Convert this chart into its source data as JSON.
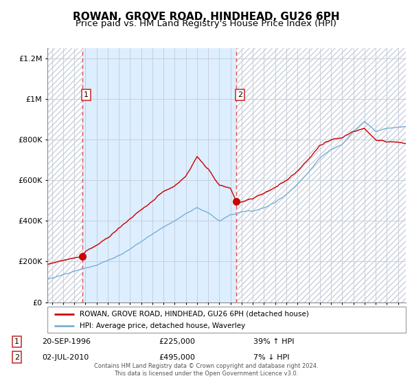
{
  "title": "ROWAN, GROVE ROAD, HINDHEAD, GU26 6PH",
  "subtitle": "Price paid vs. HM Land Registry's House Price Index (HPI)",
  "legend_line1": "ROWAN, GROVE ROAD, HINDHEAD, GU26 6PH (detached house)",
  "legend_line2": "HPI: Average price, detached house, Waverley",
  "transaction1_date": "20-SEP-1996",
  "transaction1_price": "£225,000",
  "transaction1_hpi": "39% ↑ HPI",
  "transaction2_date": "02-JUL-2010",
  "transaction2_price": "£495,000",
  "transaction2_hpi": "7% ↓ HPI",
  "footer": "Contains HM Land Registry data © Crown copyright and database right 2024.\nThis data is licensed under the Open Government Licence v3.0.",
  "hpi_color": "#7bafd4",
  "price_color": "#cc0000",
  "marker_color": "#cc0000",
  "bg_center": "#ddeeff",
  "bg_hatch_color": "#c8d0dc",
  "vline_color": "#e05050",
  "ylim": [
    0,
    1250000
  ],
  "xlim_start": 1993.6,
  "xlim_end": 2025.7,
  "transaction1_x": 1996.72,
  "transaction1_y": 225000,
  "transaction2_x": 2010.5,
  "transaction2_y": 495000,
  "grid_color": "#c8ccd8",
  "title_fontsize": 11,
  "subtitle_fontsize": 9.5,
  "axis_fontsize": 8
}
